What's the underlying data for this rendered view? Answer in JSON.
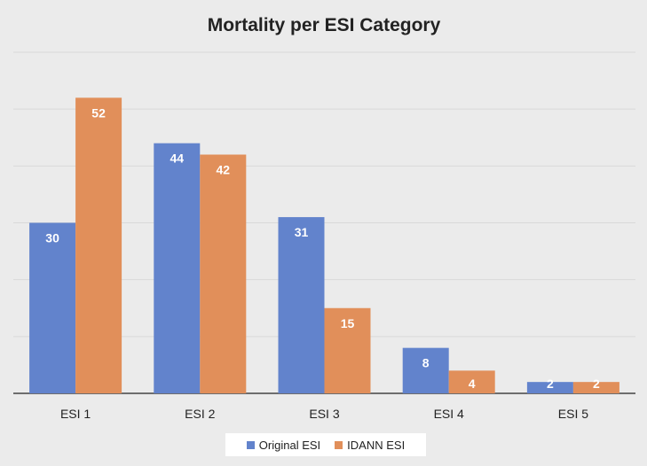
{
  "chart_data": {
    "type": "bar",
    "title": "Mortality per ESI Category",
    "categories": [
      "ESI 1",
      "ESI 2",
      "ESI 3",
      "ESI 4",
      "ESI 5"
    ],
    "series": [
      {
        "name": "Original ESI",
        "values": [
          30,
          44,
          31,
          8,
          2
        ],
        "color": "#6283cc"
      },
      {
        "name": "IDANN ESI",
        "values": [
          52,
          42,
          15,
          4,
          2
        ],
        "color": "#e18f5a"
      }
    ],
    "ylim": [
      0,
      60
    ],
    "grid": true,
    "legend": "bottom"
  }
}
